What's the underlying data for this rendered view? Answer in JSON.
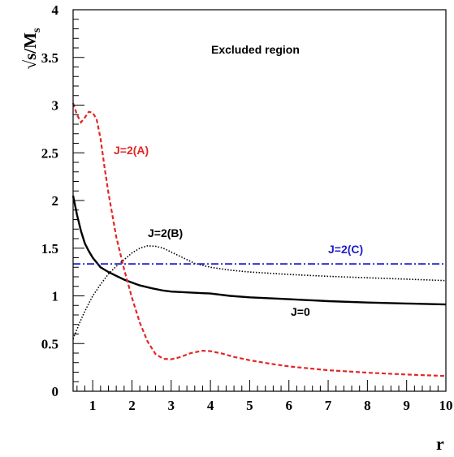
{
  "chart_data": {
    "type": "line",
    "title": "",
    "xlabel": "r",
    "ylabel_main": "√s/M",
    "ylabel_sub": "s",
    "xlim": [
      0.5,
      10
    ],
    "ylim": [
      0,
      4
    ],
    "grid": false,
    "x_ticks": [
      "1",
      "2",
      "3",
      "4",
      "5",
      "6",
      "7",
      "8",
      "9",
      "10"
    ],
    "y_ticks": [
      "0",
      "0.5",
      "1",
      "1.5",
      "2",
      "2.5",
      "3",
      "3.5",
      "4"
    ],
    "annotations": {
      "excluded": "Excluded region",
      "j0": "J=0",
      "j2a": "J=2(A)",
      "j2b": "J=2(B)",
      "j2c": "J=2(C)"
    },
    "series": [
      {
        "name": "J=0",
        "color": "#000000",
        "style": "solid",
        "points": [
          [
            0.5,
            2.05
          ],
          [
            0.6,
            1.85
          ],
          [
            0.7,
            1.68
          ],
          [
            0.8,
            1.55
          ],
          [
            0.9,
            1.47
          ],
          [
            1.0,
            1.4
          ],
          [
            1.2,
            1.3
          ],
          [
            1.4,
            1.25
          ],
          [
            1.6,
            1.21
          ],
          [
            1.8,
            1.17
          ],
          [
            2.0,
            1.14
          ],
          [
            2.2,
            1.11
          ],
          [
            2.5,
            1.08
          ],
          [
            2.8,
            1.055
          ],
          [
            3.0,
            1.045
          ],
          [
            3.5,
            1.035
          ],
          [
            4.0,
            1.025
          ],
          [
            4.5,
            1.0
          ],
          [
            5.0,
            0.985
          ],
          [
            6.0,
            0.965
          ],
          [
            7.0,
            0.945
          ],
          [
            8.0,
            0.93
          ],
          [
            9.0,
            0.92
          ],
          [
            10.0,
            0.91
          ]
        ]
      },
      {
        "name": "J=2(A)",
        "color": "#e32626",
        "style": "dashed",
        "points": [
          [
            0.5,
            3.02
          ],
          [
            0.6,
            2.9
          ],
          [
            0.7,
            2.82
          ],
          [
            0.8,
            2.87
          ],
          [
            0.9,
            2.93
          ],
          [
            1.0,
            2.92
          ],
          [
            1.1,
            2.85
          ],
          [
            1.2,
            2.65
          ],
          [
            1.3,
            2.35
          ],
          [
            1.4,
            2.08
          ],
          [
            1.5,
            1.85
          ],
          [
            1.6,
            1.62
          ],
          [
            1.8,
            1.28
          ],
          [
            2.0,
            0.98
          ],
          [
            2.2,
            0.72
          ],
          [
            2.4,
            0.52
          ],
          [
            2.6,
            0.39
          ],
          [
            2.8,
            0.34
          ],
          [
            3.0,
            0.335
          ],
          [
            3.2,
            0.355
          ],
          [
            3.5,
            0.4
          ],
          [
            3.8,
            0.425
          ],
          [
            4.0,
            0.42
          ],
          [
            4.3,
            0.395
          ],
          [
            4.6,
            0.36
          ],
          [
            5.0,
            0.325
          ],
          [
            5.5,
            0.29
          ],
          [
            6.0,
            0.26
          ],
          [
            7.0,
            0.22
          ],
          [
            8.0,
            0.195
          ],
          [
            9.0,
            0.175
          ],
          [
            10.0,
            0.16
          ]
        ]
      },
      {
        "name": "J=2(B)",
        "color": "#000000",
        "style": "dotted",
        "points": [
          [
            0.5,
            0.55
          ],
          [
            0.6,
            0.65
          ],
          [
            0.7,
            0.75
          ],
          [
            0.8,
            0.84
          ],
          [
            0.9,
            0.92
          ],
          [
            1.0,
            1.0
          ],
          [
            1.2,
            1.12
          ],
          [
            1.4,
            1.23
          ],
          [
            1.6,
            1.31
          ],
          [
            1.8,
            1.38
          ],
          [
            2.0,
            1.45
          ],
          [
            2.2,
            1.5
          ],
          [
            2.4,
            1.525
          ],
          [
            2.6,
            1.52
          ],
          [
            2.8,
            1.5
          ],
          [
            3.0,
            1.46
          ],
          [
            3.3,
            1.4
          ],
          [
            3.6,
            1.34
          ],
          [
            4.0,
            1.3
          ],
          [
            4.5,
            1.27
          ],
          [
            5.0,
            1.25
          ],
          [
            6.0,
            1.225
          ],
          [
            7.0,
            1.205
          ],
          [
            8.0,
            1.19
          ],
          [
            9.0,
            1.175
          ],
          [
            10.0,
            1.16
          ]
        ]
      },
      {
        "name": "J=2(C)",
        "color": "#1d1dcc",
        "style": "dashdot",
        "points": [
          [
            0.5,
            1.335
          ],
          [
            10.0,
            1.335
          ]
        ]
      }
    ]
  }
}
